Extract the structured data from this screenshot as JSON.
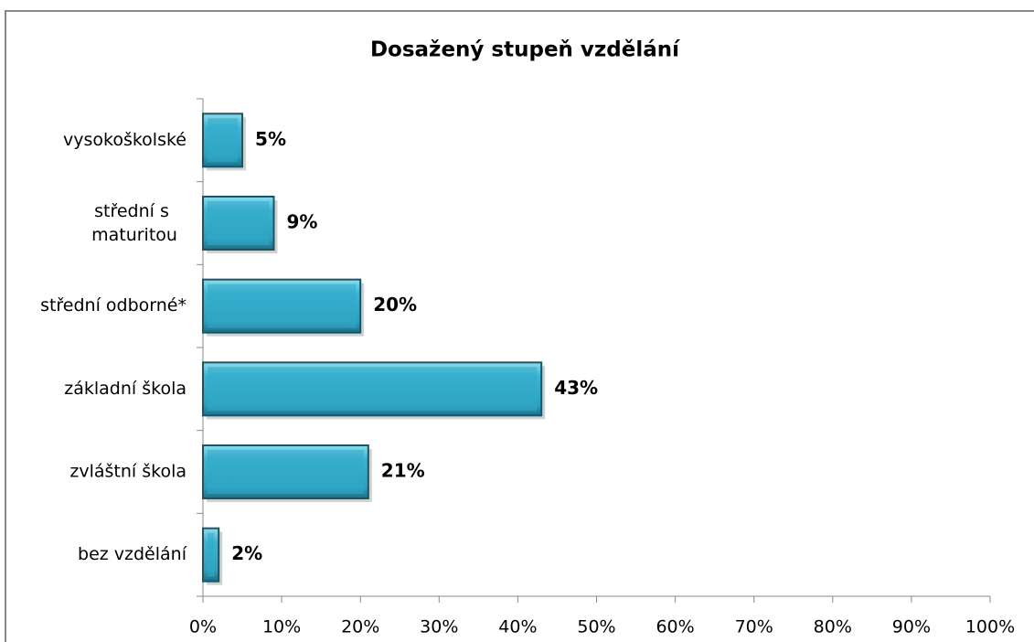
{
  "chart_data": {
    "type": "barh",
    "title": "Dosažený stupeň vzdělání",
    "categories": [
      "vysokoškolské",
      "střední s maturitou",
      "střední odborné*",
      "základní škola",
      "zvláštní škola",
      "bez vzdělání"
    ],
    "values": [
      5,
      9,
      20,
      43,
      21,
      2
    ],
    "value_labels": [
      "5%",
      "9%",
      "20%",
      "43%",
      "21%",
      "2%"
    ],
    "color": "#31a9c9",
    "xlim": [
      0,
      100
    ],
    "xticks": [
      {
        "value": 0,
        "label": "0%"
      },
      {
        "value": 10,
        "label": "10%"
      },
      {
        "value": 20,
        "label": "20%"
      },
      {
        "value": 30,
        "label": "30%"
      },
      {
        "value": 40,
        "label": "40%"
      },
      {
        "value": 50,
        "label": "50%"
      },
      {
        "value": 60,
        "label": "60%"
      },
      {
        "value": 70,
        "label": "70%"
      },
      {
        "value": 80,
        "label": "80%"
      },
      {
        "value": 90,
        "label": "90%"
      },
      {
        "value": 100,
        "label": "100%"
      }
    ]
  }
}
